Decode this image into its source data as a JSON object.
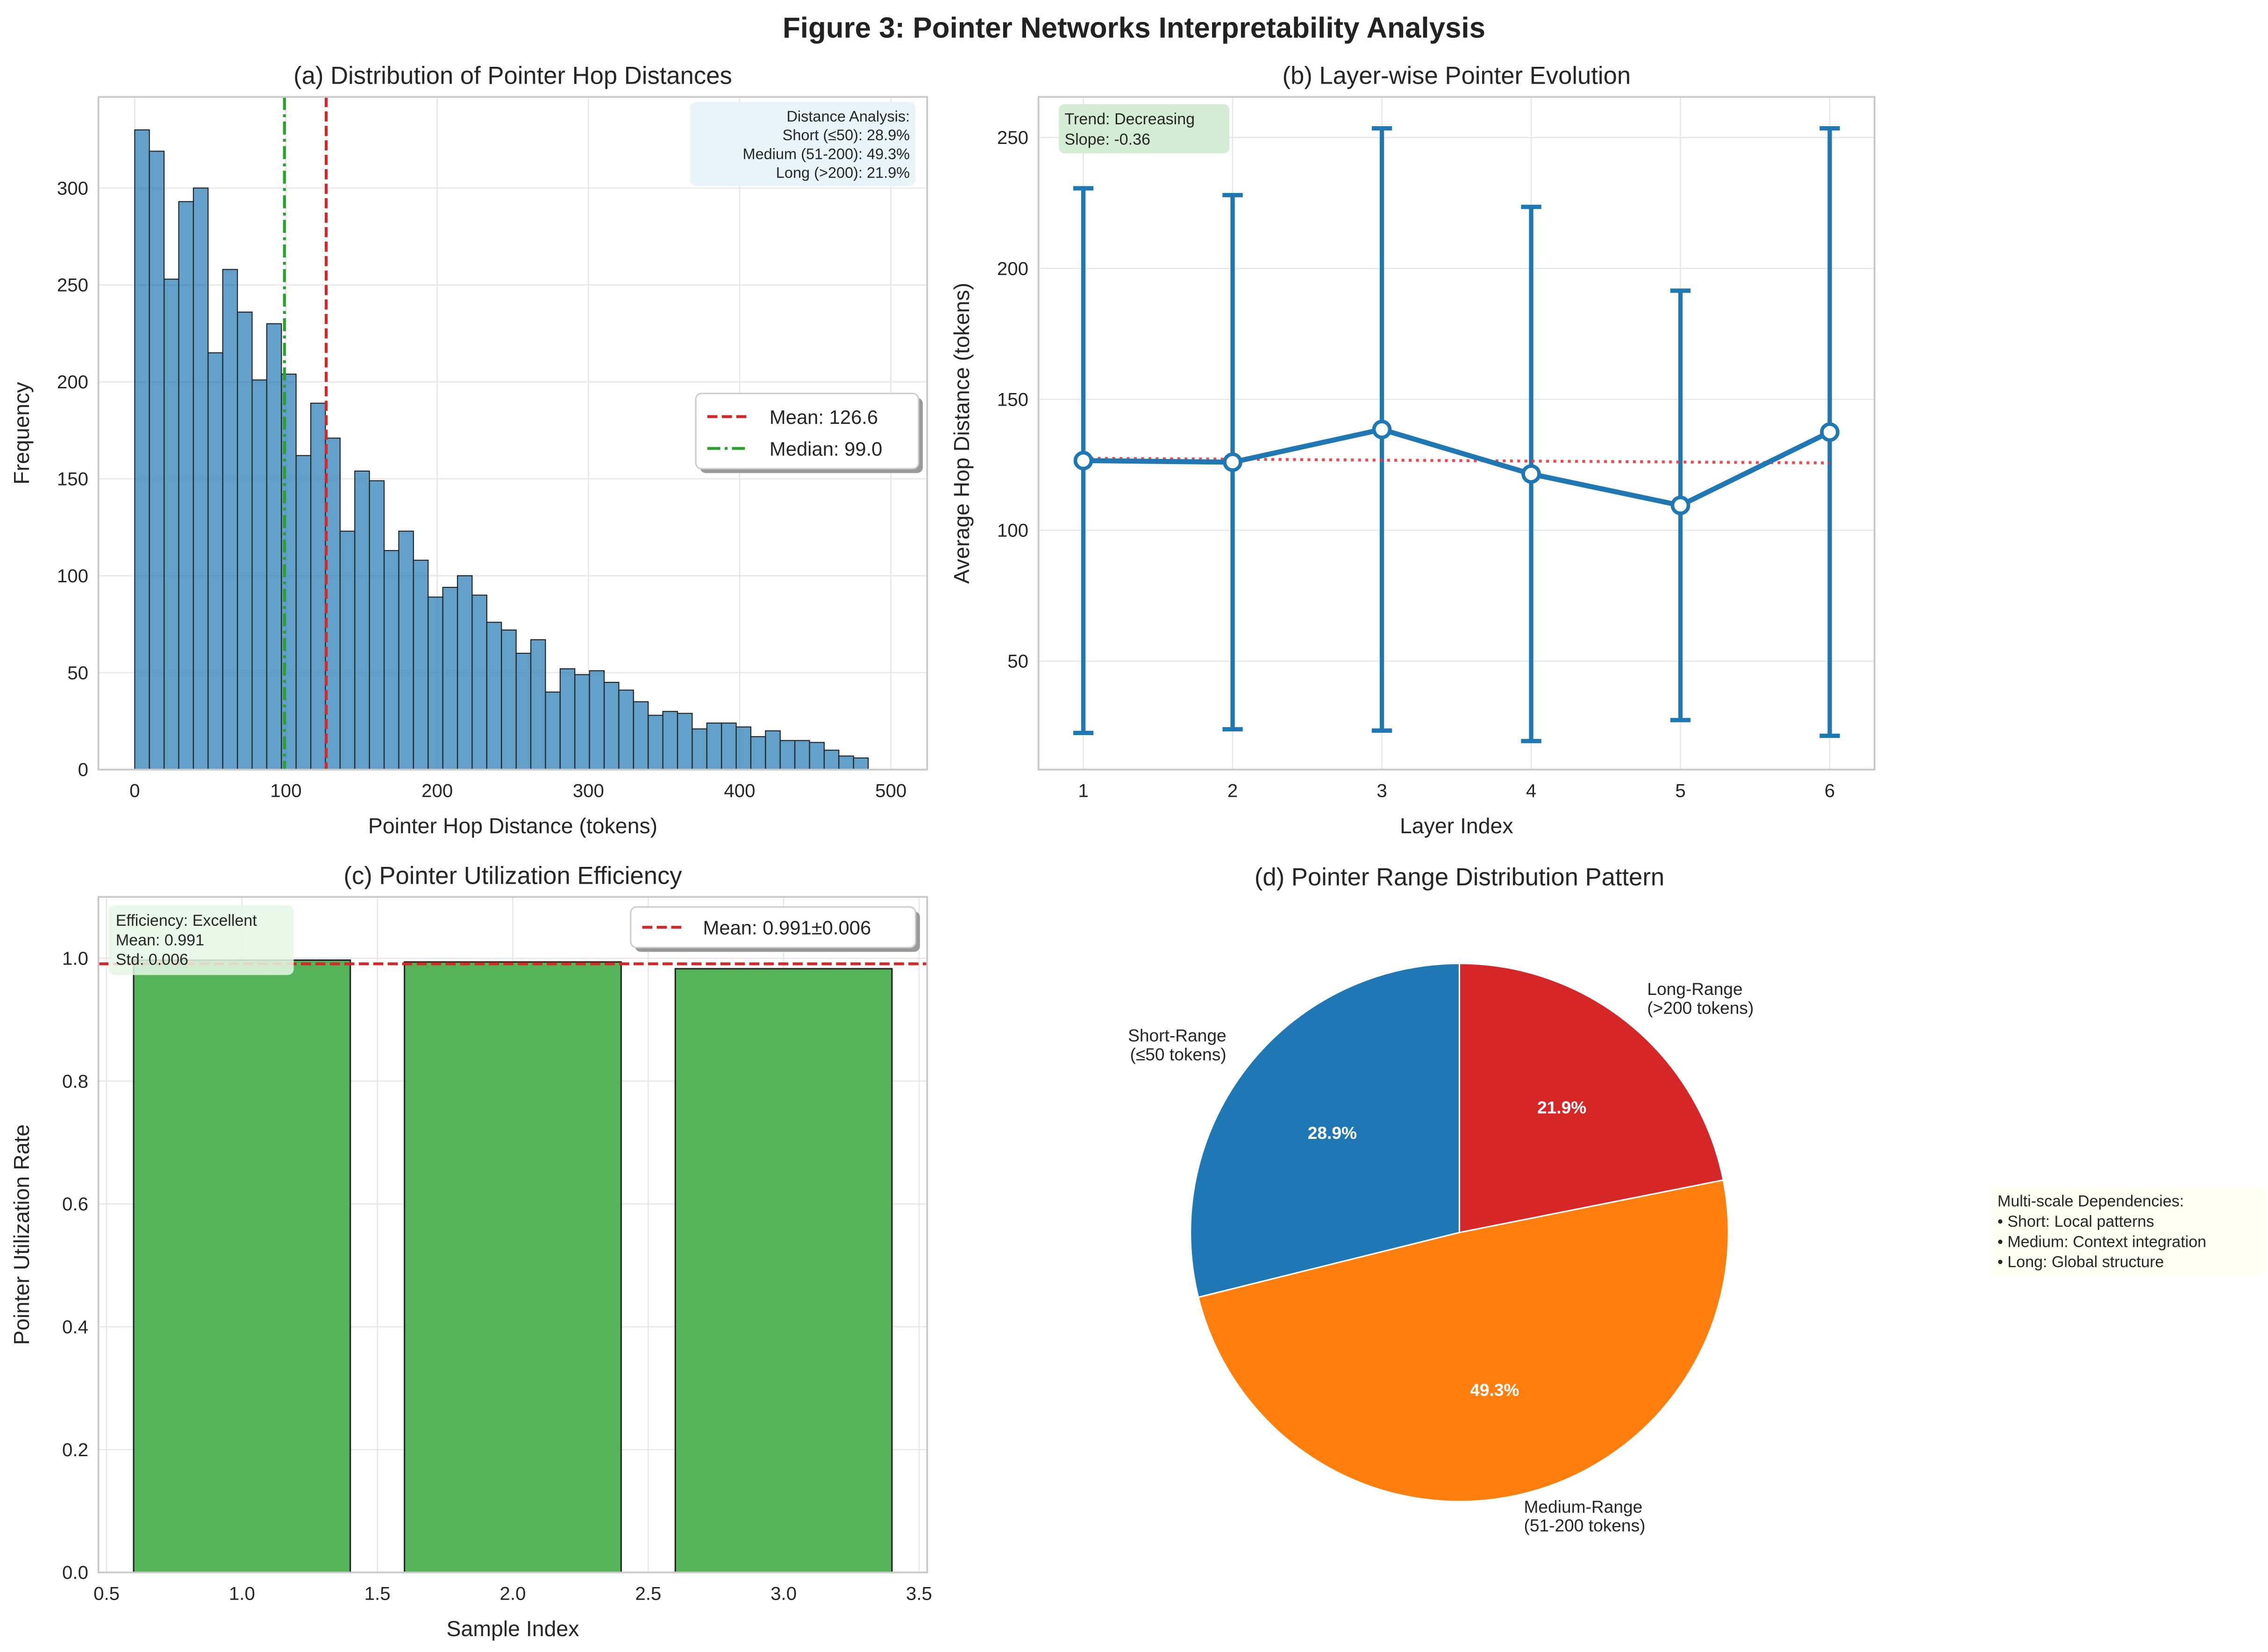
{
  "figure_title": "Figure 3: Pointer Networks Interpretability Analysis",
  "chart_data": [
    {
      "panel": "a",
      "type": "bar",
      "title": "(a) Distribution of Pointer Hop Distances",
      "xlabel": "Pointer Hop Distance (tokens)",
      "ylabel": "Frequency",
      "bin_start": 0,
      "bin_end": 485,
      "values": [
        330,
        319,
        253,
        293,
        300,
        215,
        258,
        236,
        201,
        230,
        204,
        162,
        189,
        171,
        123,
        154,
        149,
        113,
        123,
        108,
        89,
        94,
        100,
        90,
        76,
        72,
        60,
        67,
        40,
        52,
        49,
        51,
        45,
        41,
        35,
        28,
        30,
        29,
        21,
        24,
        24,
        22,
        17,
        20,
        15,
        15,
        14,
        10,
        7,
        6
      ],
      "xlim": [
        -24,
        524
      ],
      "ylim": [
        0,
        347
      ],
      "xticks": [
        0,
        100,
        200,
        300,
        400,
        500
      ],
      "yticks": [
        0,
        50,
        100,
        150,
        200,
        250,
        300
      ],
      "bar_color": "#1f77b4",
      "mean": 126.6,
      "median": 99.0,
      "legend": [
        {
          "label": "Mean: 126.6",
          "color": "#d62728",
          "style": "dashed"
        },
        {
          "label": "Median: 99.0",
          "color": "#2ca02c",
          "style": "dashdot"
        }
      ],
      "legend_position": "center-right",
      "annotation": [
        "Distance Analysis:",
        "Short (≤50): 28.9%",
        "Medium (51-200): 49.3%",
        "Long (>200): 21.9%"
      ],
      "grid": true
    },
    {
      "panel": "b",
      "type": "line",
      "title": "(b) Layer-wise Pointer Evolution",
      "xlabel": "Layer Index",
      "ylabel": "Average Hop Distance (tokens)",
      "x": [
        1,
        2,
        3,
        4,
        5,
        6
      ],
      "y": [
        126.6,
        126.0,
        138.5,
        121.5,
        109.5,
        137.5
      ],
      "error": [
        104,
        102,
        115,
        102,
        82,
        116
      ],
      "trend_line": {
        "x": [
          1,
          6
        ],
        "y": [
          127.5,
          125.7
        ],
        "color": "#e8383d",
        "style": "dotted"
      },
      "xlim": [
        0.7,
        6.3
      ],
      "ylim": [
        8.6,
        265.5
      ],
      "xticks": [
        1,
        2,
        3,
        4,
        5,
        6
      ],
      "yticks": [
        50,
        100,
        150,
        200,
        250
      ],
      "color": "#1f77b4",
      "annotation": [
        "Trend: Decreasing",
        "Slope: -0.36"
      ],
      "grid": true
    },
    {
      "panel": "c",
      "type": "bar",
      "title": "(c) Pointer Utilization Efficiency",
      "xlabel": "Sample Index",
      "ylabel": "Pointer Utilization Rate",
      "x": [
        1,
        2,
        3
      ],
      "values": [
        0.997,
        0.994,
        0.983
      ],
      "bar_color": "#4caf50",
      "xlim": [
        0.47,
        3.53
      ],
      "ylim": [
        0,
        1.1
      ],
      "xticks": [
        "0.5",
        "1.0",
        "1.5",
        "2.0",
        "2.5",
        "3.0",
        "3.5"
      ],
      "yticks": [
        "0.0",
        "0.2",
        "0.4",
        "0.6",
        "0.8",
        "1.0"
      ],
      "mean": 0.991,
      "legend": [
        {
          "label": "Mean: 0.991±0.006",
          "color": "#d62728",
          "style": "dashed"
        }
      ],
      "legend_position": "top-right",
      "annotation": [
        "Efficiency: Excellent",
        "Mean: 0.991",
        "Std: 0.006"
      ],
      "grid": true
    },
    {
      "panel": "d",
      "type": "pie",
      "title": "(d) Pointer Range Distribution Pattern",
      "slices": [
        {
          "label": [
            "Short-Range",
            "(≤50 tokens)"
          ],
          "value": 28.9,
          "pct": "28.9%",
          "color": "#1f77b4"
        },
        {
          "label": [
            "Medium-Range",
            "(51-200 tokens)"
          ],
          "value": 49.3,
          "pct": "49.3%",
          "color": "#ff7f0e"
        },
        {
          "label": [
            "Long-Range",
            "(>200 tokens)"
          ],
          "value": 21.9,
          "pct": "21.9%",
          "color": "#d62728"
        }
      ],
      "start_angle": 90,
      "annotation": [
        "Multi-scale Dependencies:",
        "• Short: Local patterns",
        "• Medium: Context integration",
        "• Long: Global structure"
      ]
    }
  ]
}
